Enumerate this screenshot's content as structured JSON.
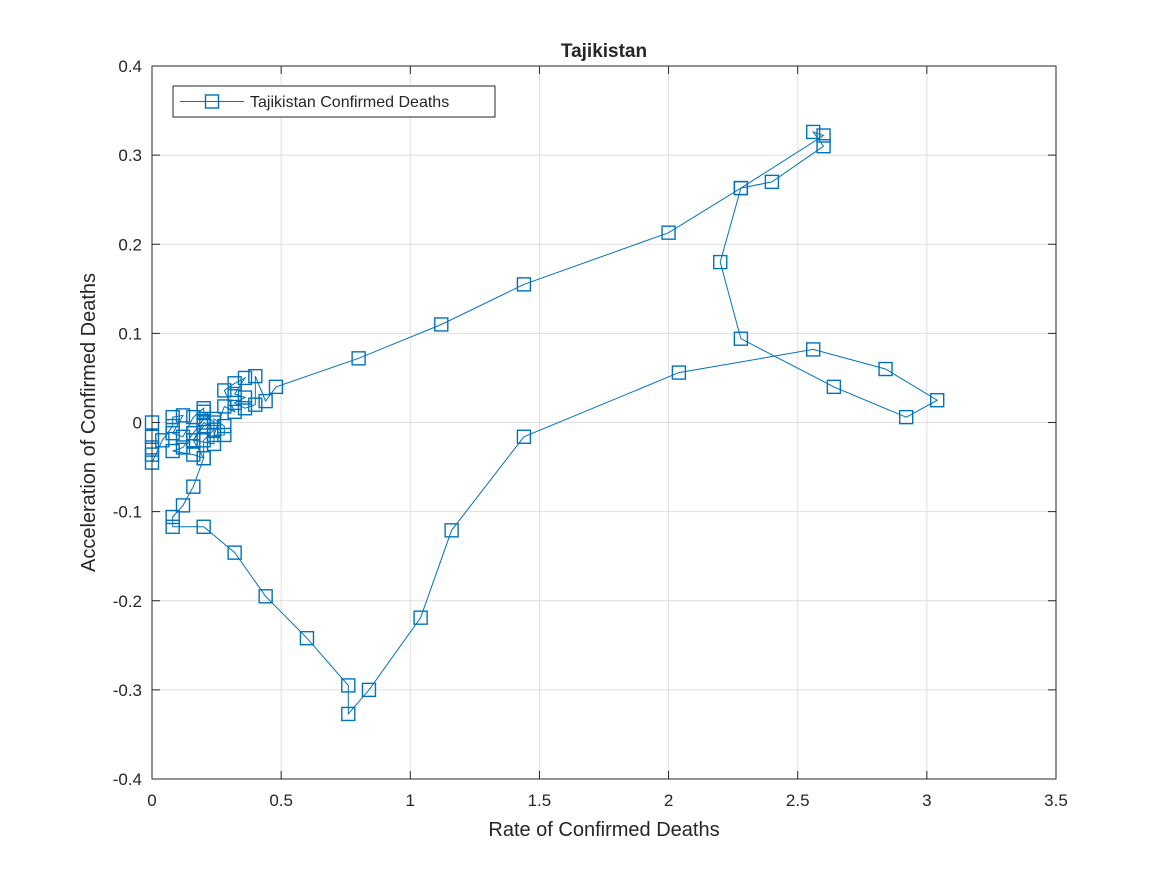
{
  "chart_data": {
    "type": "line",
    "title": "Tajikistan",
    "xlabel": "Rate of Confirmed Deaths",
    "ylabel": "Acceleration of Confirmed Deaths",
    "xlim": [
      0,
      3.5
    ],
    "ylim": [
      -0.4,
      0.4
    ],
    "x_ticks": [
      0,
      0.5,
      1,
      1.5,
      2,
      2.5,
      3,
      3.5
    ],
    "x_tick_labels": [
      "0",
      "0.5",
      "1",
      "1.5",
      "2",
      "2.5",
      "3",
      "3.5"
    ],
    "y_ticks": [
      -0.4,
      -0.3,
      -0.2,
      -0.1,
      0,
      0.1,
      0.2,
      0.3,
      0.4
    ],
    "y_tick_labels": [
      "-0.4",
      "-0.3",
      "-0.2",
      "-0.1",
      "0",
      "0.1",
      "0.2",
      "0.3",
      "0.4"
    ],
    "grid": true,
    "legend_position": "top-left",
    "marker": "square",
    "color": "#0072BD",
    "series": [
      {
        "name": "Tajikistan Confirmed Deaths",
        "points": [
          [
            0.0,
            0.0
          ],
          [
            0.0,
            -0.016
          ],
          [
            0.0,
            -0.028
          ],
          [
            0.0,
            -0.036
          ],
          [
            0.0,
            -0.045
          ],
          [
            0.04,
            -0.02
          ],
          [
            0.08,
            -0.004
          ],
          [
            0.08,
            0.006
          ],
          [
            0.12,
            0.008
          ],
          [
            0.08,
            -0.012
          ],
          [
            0.12,
            -0.016
          ],
          [
            0.16,
            0.006
          ],
          [
            0.2,
            0.016
          ],
          [
            0.2,
            0.004
          ],
          [
            0.16,
            -0.012
          ],
          [
            0.12,
            -0.028
          ],
          [
            0.08,
            -0.032
          ],
          [
            0.16,
            -0.036
          ],
          [
            0.2,
            -0.04
          ],
          [
            0.2,
            -0.02
          ],
          [
            0.24,
            -0.008
          ],
          [
            0.2,
            0.0
          ],
          [
            0.16,
            -0.02
          ],
          [
            0.24,
            -0.024
          ],
          [
            0.24,
            0.004
          ],
          [
            0.28,
            -0.004
          ],
          [
            0.28,
            -0.014
          ],
          [
            0.24,
            -0.014
          ],
          [
            0.28,
            0.018
          ],
          [
            0.32,
            0.012
          ],
          [
            0.28,
            0.036
          ],
          [
            0.32,
            0.044
          ],
          [
            0.36,
            0.05
          ],
          [
            0.32,
            0.032
          ],
          [
            0.36,
            0.028
          ],
          [
            0.32,
            0.022
          ],
          [
            0.36,
            0.016
          ],
          [
            0.4,
            0.02
          ],
          [
            0.4,
            0.052
          ],
          [
            0.44,
            0.024
          ],
          [
            0.48,
            0.04
          ],
          [
            0.8,
            0.072
          ],
          [
            1.12,
            0.11
          ],
          [
            1.44,
            0.155
          ],
          [
            2.0,
            0.213
          ],
          [
            2.28,
            0.263
          ],
          [
            2.4,
            0.27
          ],
          [
            2.6,
            0.31
          ],
          [
            2.56,
            0.326
          ],
          [
            2.6,
            0.322
          ],
          [
            2.28,
            0.263
          ],
          [
            2.2,
            0.18
          ],
          [
            2.28,
            0.094
          ],
          [
            2.64,
            0.04
          ],
          [
            2.92,
            0.006
          ],
          [
            3.04,
            0.025
          ],
          [
            2.84,
            0.06
          ],
          [
            2.56,
            0.082
          ],
          [
            2.04,
            0.056
          ],
          [
            1.44,
            -0.016
          ],
          [
            1.16,
            -0.121
          ],
          [
            1.04,
            -0.219
          ],
          [
            0.84,
            -0.3
          ],
          [
            0.76,
            -0.327
          ],
          [
            0.76,
            -0.295
          ],
          [
            0.6,
            -0.242
          ],
          [
            0.44,
            -0.195
          ],
          [
            0.32,
            -0.146
          ],
          [
            0.2,
            -0.117
          ],
          [
            0.08,
            -0.117
          ],
          [
            0.08,
            -0.106
          ],
          [
            0.12,
            -0.093
          ],
          [
            0.16,
            -0.072
          ],
          [
            0.2,
            -0.04
          ],
          [
            0.16,
            -0.02
          ],
          [
            0.2,
            -0.004
          ],
          [
            0.24,
            0.0
          ],
          [
            0.2,
            0.012
          ]
        ]
      }
    ]
  }
}
